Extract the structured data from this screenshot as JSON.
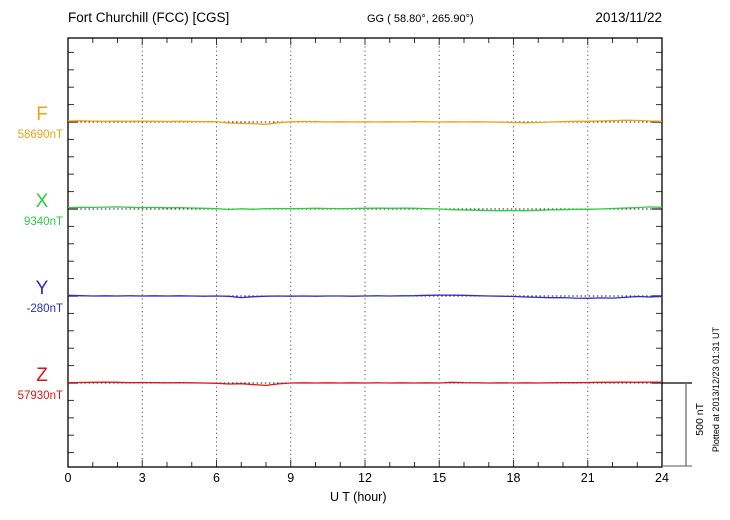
{
  "header": {
    "station_title": "Fort Churchill (FCC)  [CGS]",
    "gg_coords": "GG ( 58.80°, 265.90°)",
    "date": "2013/11/22"
  },
  "footer": {
    "xaxis_label": "U T (hour)",
    "plotted_note": "Plotted at 2013/12/23 01:31 UT"
  },
  "scale_bar": {
    "label": "500 nT",
    "nT": 500
  },
  "colors": {
    "F": "#eaa41a",
    "X": "#2ecc40",
    "Y": "#2c2ccc",
    "Z": "#e01414",
    "frame": "#000000",
    "grid": "#555555",
    "baseline_dots": "#1a1a1a"
  },
  "chart_data": {
    "type": "line",
    "title": "Fort Churchill (FCC) [CGS] magnetogram 2013/11/22",
    "xlabel": "U T (hour)",
    "ylabel": "",
    "x_range": [
      0,
      24
    ],
    "x_ticks": [
      0,
      3,
      6,
      9,
      12,
      15,
      18,
      21,
      24
    ],
    "x_minor_tick_step_hours": 1,
    "grid": "vertical dotted lines every 3 hours; dotted horizontal baseline per trace",
    "legend_position": "left margin, one colored label per trace",
    "nT_per_division": 500,
    "minor_tick_nT": 100,
    "x_hours": [
      0,
      0.5,
      1,
      1.5,
      2,
      2.5,
      3,
      3.5,
      4,
      4.5,
      5,
      5.5,
      6,
      6.5,
      7,
      7.5,
      8,
      8.5,
      9,
      9.5,
      10,
      10.5,
      11,
      11.5,
      12,
      12.5,
      13,
      13.5,
      14,
      14.5,
      15,
      15.5,
      16,
      16.5,
      17,
      17.5,
      18,
      18.5,
      19,
      19.5,
      20,
      20.5,
      21,
      21.5,
      22,
      22.5,
      23,
      23.5,
      24
    ],
    "series": [
      {
        "name": "F",
        "reference_label": "58690nT",
        "reference_value": 58690,
        "values": [
          58696,
          58697,
          58695,
          58694,
          58695,
          58694,
          58695,
          58694,
          58693,
          58694,
          58693,
          58692,
          58692,
          58684,
          58682,
          58680,
          58677,
          58686,
          58691,
          58693,
          58692,
          58690,
          58691,
          58690,
          58691,
          58690,
          58691,
          58690,
          58692,
          58691,
          58690,
          58691,
          58690,
          58691,
          58690,
          58689,
          58687,
          58685,
          58687,
          58690,
          58692,
          58694,
          58694,
          58696,
          58698,
          58700,
          58699,
          58696,
          58694
        ]
      },
      {
        "name": "X",
        "reference_label": "9340nT",
        "reference_value": 9340,
        "values": [
          9348,
          9350,
          9349,
          9351,
          9352,
          9350,
          9348,
          9349,
          9347,
          9348,
          9346,
          9344,
          9342,
          9337,
          9341,
          9338,
          9342,
          9343,
          9342,
          9343,
          9344,
          9343,
          9342,
          9343,
          9344,
          9345,
          9344,
          9345,
          9344,
          9342,
          9340,
          9336,
          9334,
          9333,
          9331,
          9330,
          9331,
          9330,
          9332,
          9335,
          9336,
          9338,
          9338,
          9340,
          9343,
          9346,
          9348,
          9352,
          9350
        ]
      },
      {
        "name": "Y",
        "reference_label": "-280nT",
        "reference_value": -280,
        "values": [
          -276,
          -278,
          -280,
          -279,
          -280,
          -279,
          -280,
          -279,
          -280,
          -279,
          -280,
          -281,
          -280,
          -282,
          -289,
          -284,
          -281,
          -280,
          -281,
          -280,
          -281,
          -280,
          -280,
          -281,
          -280,
          -279,
          -280,
          -279,
          -278,
          -276,
          -275,
          -275,
          -276,
          -278,
          -280,
          -281,
          -283,
          -286,
          -288,
          -290,
          -289,
          -292,
          -293,
          -291,
          -292,
          -288,
          -283,
          -286,
          -283
        ]
      },
      {
        "name": "Z",
        "reference_label": "57930nT",
        "reference_value": 57930,
        "values": [
          57932,
          57933,
          57934,
          57935,
          57934,
          57932,
          57933,
          57932,
          57931,
          57932,
          57931,
          57930,
          57928,
          57924,
          57926,
          57921,
          57916,
          57925,
          57930,
          57931,
          57930,
          57931,
          57930,
          57931,
          57930,
          57931,
          57930,
          57931,
          57930,
          57931,
          57930,
          57934,
          57932,
          57931,
          57930,
          57931,
          57930,
          57931,
          57930,
          57931,
          57932,
          57932,
          57933,
          57934,
          57934,
          57935,
          57934,
          57935,
          57935
        ]
      }
    ]
  }
}
